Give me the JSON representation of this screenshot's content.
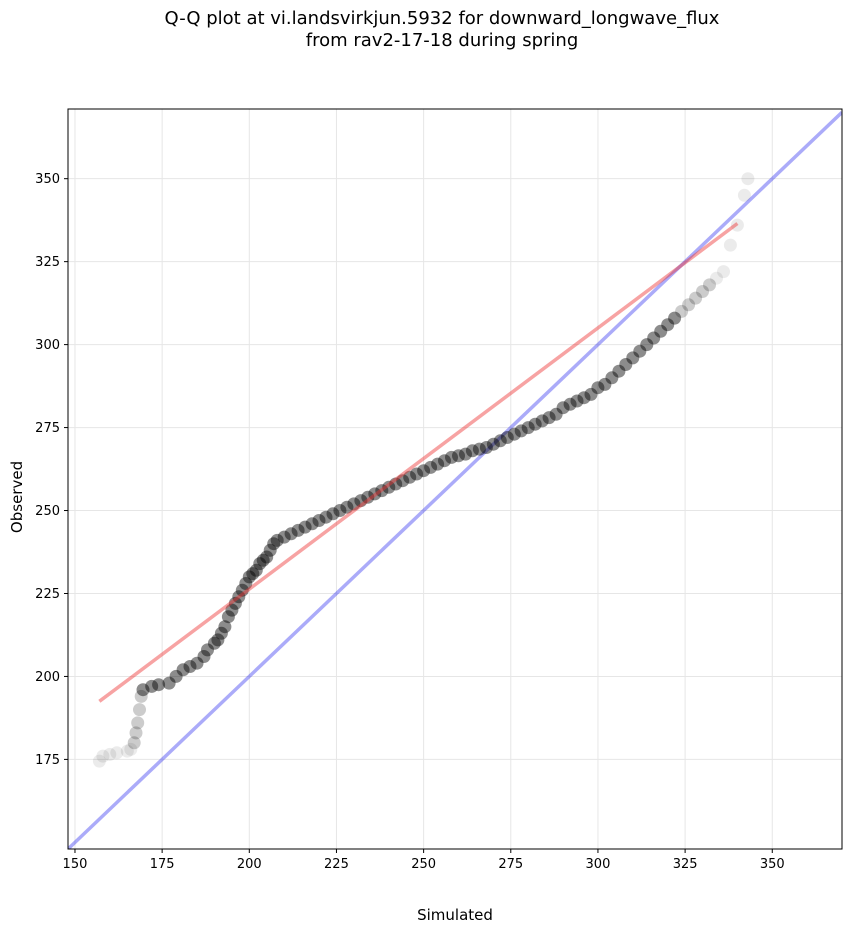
{
  "chart_data": {
    "type": "scatter",
    "title_line1": "Q-Q plot at vi.landsvirkjun.5932 for downward_longwave_flux",
    "title_line2": "from rav2-17-18 during spring",
    "xlabel": "Simulated",
    "ylabel": "Observed",
    "xlim": [
      148,
      370
    ],
    "ylim": [
      148,
      371
    ],
    "grid": true,
    "xticks": [
      150,
      175,
      200,
      225,
      250,
      275,
      300,
      325,
      350
    ],
    "yticks": [
      175,
      200,
      225,
      250,
      275,
      300,
      325,
      350
    ],
    "identity_line": {
      "name": "1:1 line",
      "color": "#0000ee",
      "from": [
        148,
        148
      ],
      "to": [
        370,
        370
      ]
    },
    "fit_line": {
      "name": "regression fit",
      "color": "#ee3333",
      "from": [
        157,
        192.5
      ],
      "to": [
        340,
        336.5
      ]
    },
    "marker_color": "#000000",
    "quantiles": [
      [
        157,
        174.5
      ],
      [
        158,
        176
      ],
      [
        160,
        176.5
      ],
      [
        162,
        177
      ],
      [
        165,
        177.5
      ],
      [
        166,
        178
      ],
      [
        167,
        180
      ],
      [
        167.5,
        183
      ],
      [
        168,
        186
      ],
      [
        168.5,
        190
      ],
      [
        169,
        194
      ],
      [
        169.5,
        196
      ],
      [
        172,
        197
      ],
      [
        174,
        197.5
      ],
      [
        177,
        198
      ],
      [
        179,
        200
      ],
      [
        181,
        202
      ],
      [
        183,
        203
      ],
      [
        185,
        204
      ],
      [
        187,
        206
      ],
      [
        188,
        208
      ],
      [
        190,
        210
      ],
      [
        191,
        211
      ],
      [
        192,
        213
      ],
      [
        193,
        215
      ],
      [
        194,
        218
      ],
      [
        195,
        220
      ],
      [
        196,
        222
      ],
      [
        197,
        224
      ],
      [
        198,
        226
      ],
      [
        199,
        228
      ],
      [
        200,
        230
      ],
      [
        201,
        231
      ],
      [
        202,
        232
      ],
      [
        203,
        234
      ],
      [
        204,
        235
      ],
      [
        205,
        236
      ],
      [
        206,
        238
      ],
      [
        207,
        240
      ],
      [
        208,
        241
      ],
      [
        210,
        242
      ],
      [
        212,
        243
      ],
      [
        214,
        244
      ],
      [
        216,
        245
      ],
      [
        218,
        246
      ],
      [
        220,
        247
      ],
      [
        222,
        248
      ],
      [
        224,
        249
      ],
      [
        226,
        250
      ],
      [
        228,
        251
      ],
      [
        230,
        252
      ],
      [
        232,
        253
      ],
      [
        234,
        254
      ],
      [
        236,
        255
      ],
      [
        238,
        256
      ],
      [
        240,
        257
      ],
      [
        242,
        258
      ],
      [
        244,
        259
      ],
      [
        246,
        260
      ],
      [
        248,
        261
      ],
      [
        250,
        262
      ],
      [
        252,
        263
      ],
      [
        254,
        264
      ],
      [
        256,
        265
      ],
      [
        258,
        266
      ],
      [
        260,
        266.5
      ],
      [
        262,
        267
      ],
      [
        264,
        268
      ],
      [
        266,
        268.5
      ],
      [
        268,
        269
      ],
      [
        270,
        270
      ],
      [
        272,
        271
      ],
      [
        274,
        272
      ],
      [
        276,
        273
      ],
      [
        278,
        274
      ],
      [
        280,
        275
      ],
      [
        282,
        276
      ],
      [
        284,
        277
      ],
      [
        286,
        278
      ],
      [
        288,
        279
      ],
      [
        290,
        281
      ],
      [
        292,
        282
      ],
      [
        294,
        283
      ],
      [
        296,
        284
      ],
      [
        298,
        285
      ],
      [
        300,
        287
      ],
      [
        302,
        288
      ],
      [
        304,
        290
      ],
      [
        306,
        292
      ],
      [
        308,
        294
      ],
      [
        310,
        296
      ],
      [
        312,
        298
      ],
      [
        314,
        300
      ],
      [
        316,
        302
      ],
      [
        318,
        304
      ],
      [
        320,
        306
      ],
      [
        322,
        308
      ],
      [
        324,
        310
      ],
      [
        326,
        312
      ],
      [
        328,
        314
      ],
      [
        330,
        316
      ],
      [
        332,
        318
      ],
      [
        334,
        320
      ],
      [
        336,
        322
      ],
      [
        338,
        330
      ],
      [
        340,
        336
      ],
      [
        342,
        345
      ],
      [
        343,
        350
      ]
    ]
  }
}
